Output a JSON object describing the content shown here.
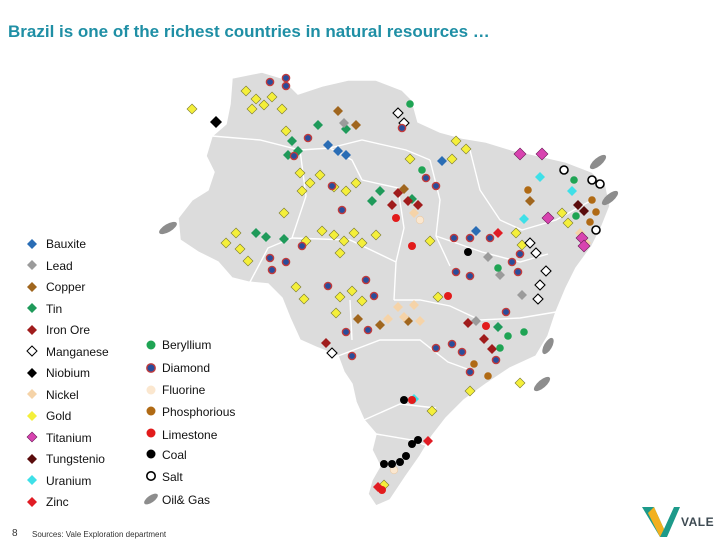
{
  "title": "Brazil is one of the richest countries in natural resources …",
  "page_number": "8",
  "sources": "Sources: Vale Exploration department",
  "logo_text": "VALE",
  "legend_left": [
    {
      "label": "Bauxite",
      "shape": "diamond",
      "color": "#2a6db5"
    },
    {
      "label": "Lead",
      "shape": "diamond",
      "color": "#9b9b9b"
    },
    {
      "label": "Copper",
      "shape": "diamond",
      "color": "#a0661e"
    },
    {
      "label": "Tin",
      "shape": "diamond",
      "color": "#1f9a5a"
    },
    {
      "label": "Iron Ore",
      "shape": "diamond",
      "color": "#a01c1c"
    },
    {
      "label": "Manganese",
      "shape": "diamond-open",
      "color": "#000000"
    },
    {
      "label": "Niobium",
      "shape": "diamond",
      "color": "#000000"
    },
    {
      "label": "Nickel",
      "shape": "diamond",
      "color": "#f5d3a8"
    },
    {
      "label": "Gold",
      "shape": "diamond",
      "color": "#f4ef3a"
    },
    {
      "label": "Titanium",
      "shape": "diamond",
      "color": "#d843b0"
    },
    {
      "label": "Tungstenio",
      "shape": "diamond",
      "color": "#5a0c0c"
    },
    {
      "label": "Uranium",
      "shape": "diamond",
      "color": "#3fe0e8"
    },
    {
      "label": "Zinc",
      "shape": "diamond",
      "color": "#e01c24"
    }
  ],
  "legend_right": [
    {
      "label": "Beryllium",
      "shape": "circle",
      "color": "#1fa454"
    },
    {
      "label": "Diamond",
      "shape": "circle-ring",
      "color": "#2a4d9b"
    },
    {
      "label": "Fluorine",
      "shape": "circle",
      "color": "#fbe7cf"
    },
    {
      "label": "Phosphorious",
      "shape": "circle",
      "color": "#b06a14"
    },
    {
      "label": "Limestone",
      "shape": "circle",
      "color": "#e21b1b"
    },
    {
      "label": "Coal",
      "shape": "circle",
      "color": "#000000"
    },
    {
      "label": "Salt",
      "shape": "circle-open",
      "color": "#000000"
    },
    {
      "label": "Oil& Gas",
      "shape": "ellipse",
      "color": "#8d8d8d"
    }
  ],
  "colors": {
    "title": "#1f8fa5",
    "land": "#dcdcdc",
    "state_border": "#ffffff",
    "logo_green": "#1d9a8a",
    "logo_yellow": "#f2b01e"
  }
}
